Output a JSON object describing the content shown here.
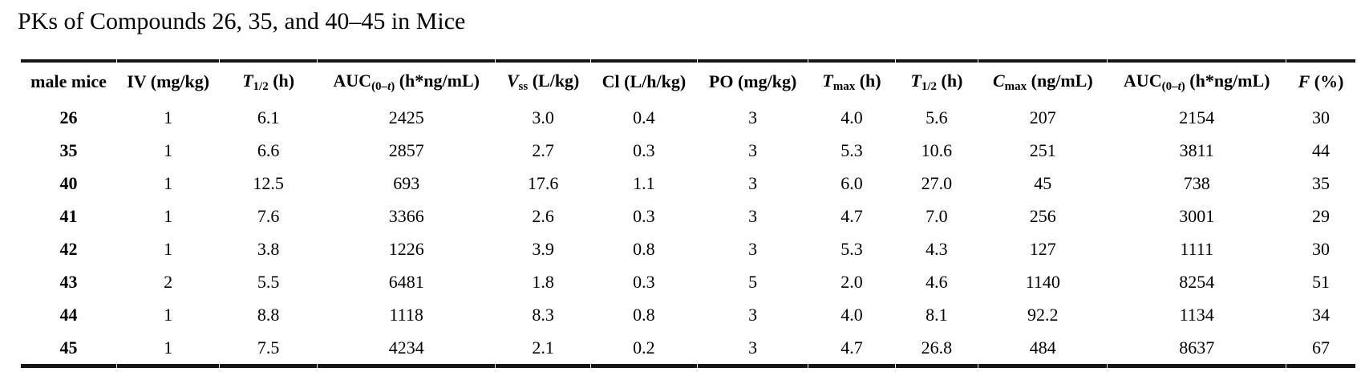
{
  "title": "PKs of Compounds 26, 35, and 40–45 in Mice",
  "table": {
    "columns": [
      {
        "key": "male-mice",
        "segments": [
          {
            "t": "male mice"
          }
        ]
      },
      {
        "key": "iv-dose",
        "segments": [
          {
            "t": "IV (mg/kg)"
          }
        ]
      },
      {
        "key": "t-half-iv",
        "segments": [
          {
            "t": "T",
            "i": true
          },
          {
            "t": "1/2",
            "s": true
          },
          {
            "t": " (h)"
          }
        ]
      },
      {
        "key": "auc-iv",
        "segments": [
          {
            "t": "AUC"
          },
          {
            "t": "(0–",
            "s": true
          },
          {
            "t": "t",
            "s": true,
            "i": true
          },
          {
            "t": ")",
            "s": true
          },
          {
            "t": " (h*ng/mL)"
          }
        ]
      },
      {
        "key": "vss",
        "segments": [
          {
            "t": "V",
            "i": true
          },
          {
            "t": "ss",
            "s": true
          },
          {
            "t": " (L/kg)"
          }
        ]
      },
      {
        "key": "cl",
        "segments": [
          {
            "t": "Cl (L/h/kg)"
          }
        ]
      },
      {
        "key": "po-dose",
        "segments": [
          {
            "t": "PO (mg/kg)"
          }
        ]
      },
      {
        "key": "tmax",
        "segments": [
          {
            "t": "T",
            "i": true
          },
          {
            "t": "max",
            "s": true
          },
          {
            "t": " (h)"
          }
        ]
      },
      {
        "key": "t-half-po",
        "segments": [
          {
            "t": "T",
            "i": true
          },
          {
            "t": "1/2",
            "s": true
          },
          {
            "t": " (h)"
          }
        ]
      },
      {
        "key": "cmax",
        "segments": [
          {
            "t": "C",
            "i": true
          },
          {
            "t": "max",
            "s": true
          },
          {
            "t": " (ng/mL)"
          }
        ]
      },
      {
        "key": "auc-po",
        "segments": [
          {
            "t": "AUC"
          },
          {
            "t": "(0–",
            "s": true
          },
          {
            "t": "t",
            "s": true,
            "i": true
          },
          {
            "t": ")",
            "s": true
          },
          {
            "t": " (h*ng/mL)"
          }
        ]
      },
      {
        "key": "f-percent",
        "segments": [
          {
            "t": "F",
            "i": true
          },
          {
            "t": " (%)"
          }
        ]
      }
    ],
    "rows": [
      {
        "compound": "26",
        "values": [
          "1",
          "6.1",
          "2425",
          "3.0",
          "0.4",
          "3",
          "4.0",
          "5.6",
          "207",
          "2154",
          "30"
        ]
      },
      {
        "compound": "35",
        "values": [
          "1",
          "6.6",
          "2857",
          "2.7",
          "0.3",
          "3",
          "5.3",
          "10.6",
          "251",
          "3811",
          "44"
        ]
      },
      {
        "compound": "40",
        "values": [
          "1",
          "12.5",
          "693",
          "17.6",
          "1.1",
          "3",
          "6.0",
          "27.0",
          "45",
          "738",
          "35"
        ]
      },
      {
        "compound": "41",
        "values": [
          "1",
          "7.6",
          "3366",
          "2.6",
          "0.3",
          "3",
          "4.7",
          "7.0",
          "256",
          "3001",
          "29"
        ]
      },
      {
        "compound": "42",
        "values": [
          "1",
          "3.8",
          "1226",
          "3.9",
          "0.8",
          "3",
          "5.3",
          "4.3",
          "127",
          "1111",
          "30"
        ]
      },
      {
        "compound": "43",
        "values": [
          "2",
          "5.5",
          "6481",
          "1.8",
          "0.3",
          "5",
          "2.0",
          "4.6",
          "1140",
          "8254",
          "51"
        ]
      },
      {
        "compound": "44",
        "values": [
          "1",
          "8.8",
          "1118",
          "8.3",
          "0.8",
          "3",
          "4.0",
          "8.1",
          "92.2",
          "1134",
          "34"
        ]
      },
      {
        "compound": "45",
        "values": [
          "1",
          "7.5",
          "4234",
          "2.1",
          "0.2",
          "3",
          "4.7",
          "26.8",
          "484",
          "8637",
          "67"
        ]
      }
    ]
  }
}
